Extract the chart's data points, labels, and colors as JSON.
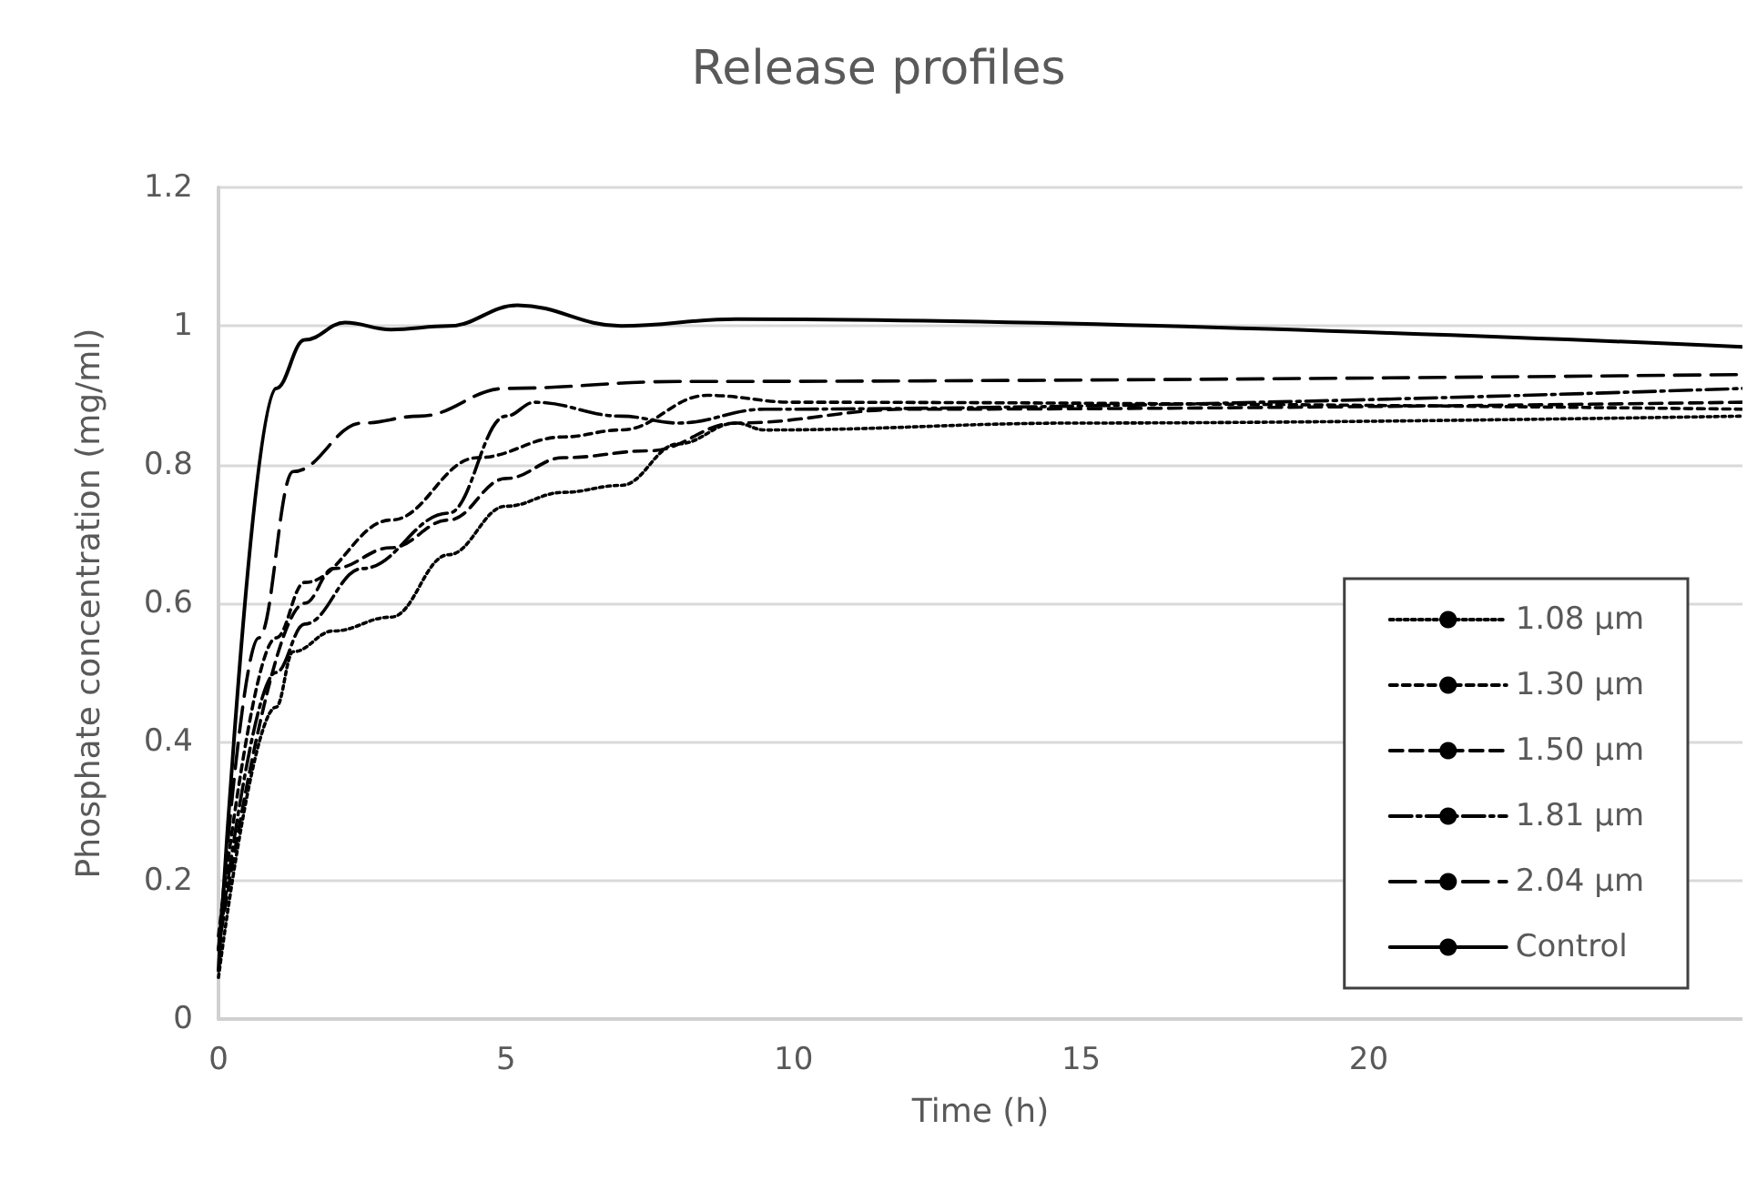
{
  "chart_data": {
    "type": "line",
    "title": "Release profiles",
    "xlabel": "Time (h)",
    "ylabel": "Phosphate concentration (mg/ml)",
    "xlim": [
      0,
      26.5
    ],
    "xticks": [
      0,
      5,
      10,
      15,
      20
    ],
    "ylim": [
      0,
      1.2
    ],
    "yticks": [
      0,
      0.2,
      0.4,
      0.6,
      0.8,
      1,
      1.2
    ],
    "grid": "y",
    "legend": "right",
    "marker": "none",
    "series": [
      {
        "name": "1.08 µm",
        "color": "#000000",
        "line_style": "dotted",
        "x": [
          0,
          1,
          1.3,
          2,
          3,
          4,
          5,
          6,
          7,
          8,
          9,
          9.5,
          15,
          26.5
        ],
        "values": [
          0.06,
          0.45,
          0.53,
          0.56,
          0.58,
          0.67,
          0.74,
          0.76,
          0.77,
          0.83,
          0.86,
          0.85,
          0.86,
          0.87
        ]
      },
      {
        "name": "1.30 µm",
        "color": "#000000",
        "line_style": "dashed",
        "x": [
          0,
          1,
          1.5,
          3,
          4.5,
          6,
          7,
          8.5,
          10,
          26.5
        ],
        "values": [
          0.12,
          0.55,
          0.63,
          0.72,
          0.81,
          0.84,
          0.85,
          0.9,
          0.89,
          0.88
        ]
      },
      {
        "name": "1.50 µm",
        "color": "#000000",
        "line_style": "dashed",
        "x": [
          0,
          1.5,
          2,
          3,
          4,
          5,
          6,
          7.5,
          9,
          12,
          26.5
        ],
        "values": [
          0.1,
          0.6,
          0.65,
          0.68,
          0.72,
          0.78,
          0.81,
          0.82,
          0.86,
          0.88,
          0.89
        ]
      },
      {
        "name": "1.81 µm",
        "color": "#000000",
        "line_style": "dashed",
        "x": [
          0,
          1,
          1.5,
          2.5,
          4,
          5,
          5.5,
          7,
          8,
          9.5,
          26.5
        ],
        "values": [
          0.1,
          0.5,
          0.57,
          0.65,
          0.73,
          0.87,
          0.89,
          0.87,
          0.86,
          0.88,
          0.91
        ]
      },
      {
        "name": "2.04 µm",
        "color": "#000000",
        "line_style": "dashed",
        "x": [
          0,
          0.7,
          1.3,
          2.5,
          3.5,
          5,
          8,
          26.5
        ],
        "values": [
          0.1,
          0.55,
          0.79,
          0.86,
          0.87,
          0.91,
          0.92,
          0.93
        ]
      },
      {
        "name": "Control",
        "color": "#000000",
        "line_style": "solid",
        "x": [
          0,
          1,
          1.5,
          2.2,
          3,
          4,
          5.2,
          7,
          9,
          26.5
        ],
        "values": [
          0.07,
          0.91,
          0.98,
          1.005,
          0.995,
          1,
          1.03,
          1,
          1.01,
          0.97
        ]
      }
    ]
  }
}
